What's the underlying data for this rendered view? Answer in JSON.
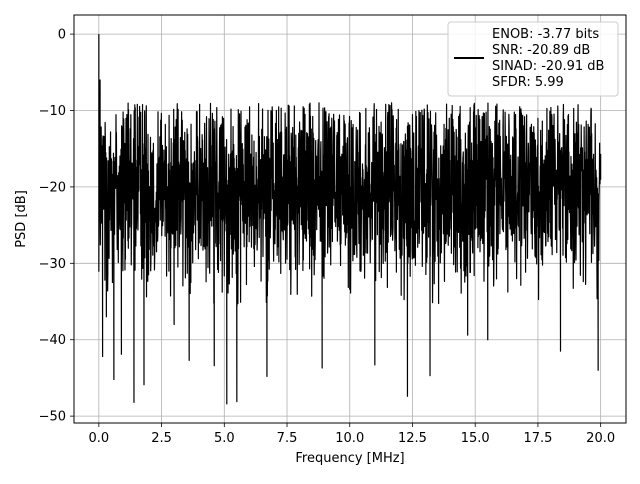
{
  "chart_data": {
    "type": "line",
    "xlabel": "Frequency [MHz]",
    "ylabel": "PSD [dB]",
    "xlim": [
      -0.99,
      21.01
    ],
    "ylim": [
      -50.9,
      2.5
    ],
    "x_ticks": [
      0.0,
      2.5,
      5.0,
      7.5,
      10.0,
      12.5,
      15.0,
      17.5,
      20.0
    ],
    "x_tick_labels": [
      "0.0",
      "2.5",
      "5.0",
      "7.5",
      "10.0",
      "12.5",
      "15.0",
      "17.5",
      "20.0"
    ],
    "y_ticks": [
      0,
      -10,
      -20,
      -30,
      -40,
      -50
    ],
    "y_tick_labels": [
      "0",
      "−10",
      "−20",
      "−30",
      "−40",
      "−50"
    ],
    "grid": true,
    "legend_position": "top-right",
    "line_color": "#000000",
    "series": [
      {
        "x_start": 0.0,
        "x_end": 20.0,
        "summary": "dense noise spectrum, peak 0 dB at 0 MHz, upper envelope about -9 dB, lower envelope about -30 dB, deep dips to about -48 dB",
        "anchor_points": [
          [
            0.0,
            0.0
          ],
          [
            0.02,
            -22
          ],
          [
            0.05,
            -6
          ],
          [
            0.1,
            -15
          ],
          [
            0.15,
            -42.2
          ],
          [
            0.3,
            -37
          ],
          [
            0.6,
            -45.2
          ],
          [
            0.9,
            -41.9
          ],
          [
            1.4,
            -48.2
          ],
          [
            1.8,
            -45.9
          ],
          [
            3.0,
            -38
          ],
          [
            3.6,
            -42.7
          ],
          [
            4.6,
            -43.4
          ],
          [
            5.1,
            -48.4
          ],
          [
            5.5,
            -48.1
          ],
          [
            6.7,
            -44.8
          ],
          [
            8.9,
            -43.7
          ],
          [
            11.0,
            -43.3
          ],
          [
            12.3,
            -47.4
          ],
          [
            13.2,
            -44.7
          ],
          [
            14.7,
            -39.4
          ],
          [
            15.5,
            -40.0
          ],
          [
            18.4,
            -41.5
          ],
          [
            19.9,
            -44.0
          ],
          [
            20.0,
            -19
          ]
        ]
      }
    ],
    "legend_lines": [
      "ENOB: -3.77 bits",
      "SNR: -20.89 dB",
      "SINAD: -20.91 dB",
      "SFDR: 5.99"
    ]
  }
}
